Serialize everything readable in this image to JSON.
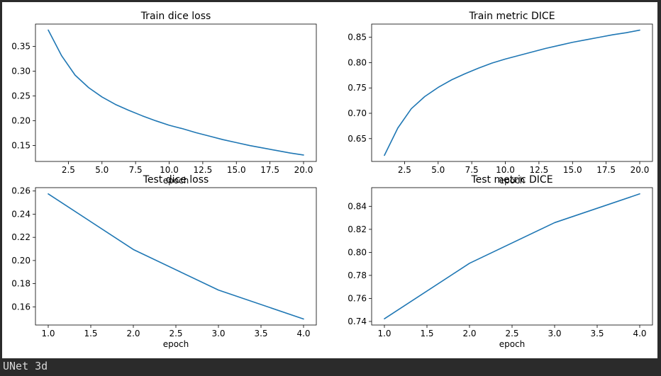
{
  "caption": "UNet 3d",
  "colors": {
    "line": "#1f77b4"
  },
  "chart_data": [
    {
      "type": "line",
      "title": "Train dice loss",
      "xlabel": "epoch",
      "ylabel": "",
      "x": [
        1,
        2,
        3,
        4,
        5,
        6,
        7,
        8,
        9,
        10,
        11,
        12,
        13,
        14,
        15,
        16,
        17,
        18,
        19,
        20
      ],
      "values": [
        0.383,
        0.331,
        0.292,
        0.267,
        0.248,
        0.233,
        0.221,
        0.21,
        0.2,
        0.191,
        0.184,
        0.176,
        0.169,
        0.162,
        0.156,
        0.15,
        0.145,
        0.14,
        0.135,
        0.131
      ],
      "xlim": [
        0.05,
        20.95
      ],
      "ylim": [
        0.118,
        0.395
      ],
      "xticks": [
        2.5,
        5.0,
        7.5,
        10.0,
        12.5,
        15.0,
        17.5,
        20.0
      ],
      "xticklabels": [
        "2.5",
        "5.0",
        "7.5",
        "10.0",
        "12.5",
        "15.0",
        "17.5",
        "20.0"
      ],
      "yticks": [
        0.15,
        0.2,
        0.25,
        0.3,
        0.35
      ],
      "yticklabels": [
        "0.15",
        "0.20",
        "0.25",
        "0.30",
        "0.35"
      ],
      "grid": false
    },
    {
      "type": "line",
      "title": "Train metric DICE",
      "xlabel": "epoch",
      "ylabel": "",
      "x": [
        1,
        2,
        3,
        4,
        5,
        6,
        7,
        8,
        9,
        10,
        11,
        12,
        13,
        14,
        15,
        16,
        17,
        18,
        19,
        20
      ],
      "values": [
        0.617,
        0.671,
        0.709,
        0.733,
        0.751,
        0.766,
        0.778,
        0.789,
        0.799,
        0.807,
        0.814,
        0.821,
        0.828,
        0.834,
        0.84,
        0.845,
        0.85,
        0.855,
        0.859,
        0.864
      ],
      "xlim": [
        0.05,
        20.95
      ],
      "ylim": [
        0.605,
        0.876
      ],
      "xticks": [
        2.5,
        5.0,
        7.5,
        10.0,
        12.5,
        15.0,
        17.5,
        20.0
      ],
      "xticklabels": [
        "2.5",
        "5.0",
        "7.5",
        "10.0",
        "12.5",
        "15.0",
        "17.5",
        "20.0"
      ],
      "yticks": [
        0.65,
        0.7,
        0.75,
        0.8,
        0.85
      ],
      "yticklabels": [
        "0.65",
        "0.70",
        "0.75",
        "0.80",
        "0.85"
      ],
      "grid": false
    },
    {
      "type": "line",
      "title": "Test dice loss",
      "xlabel": "epoch",
      "ylabel": "",
      "x": [
        1,
        2,
        3,
        4
      ],
      "values": [
        0.2575,
        0.2095,
        0.1745,
        0.1495
      ],
      "xlim": [
        0.85,
        4.15
      ],
      "ylim": [
        0.1443,
        0.2629
      ],
      "xticks": [
        1.0,
        1.5,
        2.0,
        2.5,
        3.0,
        3.5,
        4.0
      ],
      "xticklabels": [
        "1.0",
        "1.5",
        "2.0",
        "2.5",
        "3.0",
        "3.5",
        "4.0"
      ],
      "yticks": [
        0.16,
        0.18,
        0.2,
        0.22,
        0.24,
        0.26
      ],
      "yticklabels": [
        "0.16",
        "0.18",
        "0.20",
        "0.22",
        "0.24",
        "0.26"
      ],
      "grid": false
    },
    {
      "type": "line",
      "title": "Test metric DICE",
      "xlabel": "epoch",
      "ylabel": "",
      "x": [
        1,
        2,
        3,
        4
      ],
      "values": [
        0.7423,
        0.7905,
        0.8258,
        0.8508
      ],
      "xlim": [
        0.85,
        4.15
      ],
      "ylim": [
        0.7369,
        0.8562
      ],
      "xticks": [
        1.0,
        1.5,
        2.0,
        2.5,
        3.0,
        3.5,
        4.0
      ],
      "xticklabels": [
        "1.0",
        "1.5",
        "2.0",
        "2.5",
        "3.0",
        "3.5",
        "4.0"
      ],
      "yticks": [
        0.74,
        0.76,
        0.78,
        0.8,
        0.82,
        0.84
      ],
      "yticklabels": [
        "0.74",
        "0.76",
        "0.78",
        "0.80",
        "0.82",
        "0.84"
      ],
      "grid": false
    }
  ]
}
